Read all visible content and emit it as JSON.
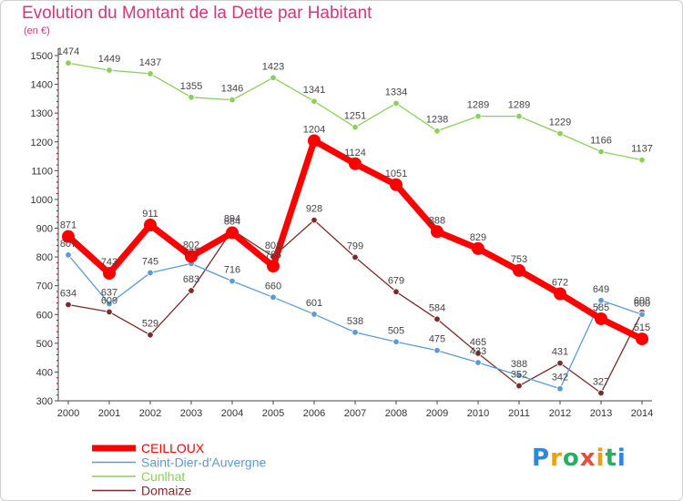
{
  "title": "Evolution du Montant de la Dette par Habitant",
  "unit": "(en €)",
  "logo_text": "Proxiti",
  "chart_data": {
    "type": "line",
    "title": "Evolution du Montant de la Dette par Habitant",
    "ylabel": "(en €)",
    "x": [
      "2000",
      "2001",
      "2002",
      "2003",
      "2004",
      "2005",
      "2006",
      "2007",
      "2008",
      "2009",
      "2010",
      "2011",
      "2012",
      "2013",
      "2014"
    ],
    "ylim": [
      300,
      1500
    ],
    "yticks": [
      300,
      400,
      500,
      600,
      700,
      800,
      900,
      1000,
      1100,
      1200,
      1300,
      1400,
      1500
    ],
    "grid": false,
    "legend_position": "bottom-left",
    "series": [
      {
        "name": "CEILLOUX",
        "color": "#ff0000",
        "values": [
          871,
          743,
          911,
          802,
          884,
          768,
          1204,
          1124,
          1051,
          888,
          829,
          753,
          672,
          585,
          515
        ],
        "labels": [
          "871",
          "743",
          "911",
          "802",
          "884",
          "768",
          "1204",
          "1124",
          "1051",
          "888",
          "829",
          "753",
          "672",
          "585",
          "515"
        ]
      },
      {
        "name": "Saint-Dier-d'Auvergne",
        "color": "#5b9bd5",
        "values": [
          807,
          637,
          745,
          777,
          716,
          660,
          601,
          538,
          505,
          475,
          433,
          388,
          342,
          649,
          600
        ],
        "labels": [
          "807",
          "637",
          "745",
          "777",
          "716",
          "660",
          "601",
          "538",
          "505",
          "475",
          "433",
          "388",
          "342",
          "649",
          "600"
        ]
      },
      {
        "name": "Cunlhat",
        "color": "#8bd05b",
        "values": [
          1474,
          1449,
          1437,
          1355,
          1346,
          1423,
          1341,
          1251,
          1334,
          1238,
          1289,
          1289,
          1229,
          1166,
          1137
        ],
        "labels": [
          "1474",
          "1449",
          "1437",
          "1355",
          "1346",
          "1423",
          "1341",
          "1251",
          "1334",
          "1238",
          "1289",
          "1289",
          "1229",
          "1166",
          "1137"
        ]
      },
      {
        "name": "Domaize",
        "color": "#7b2b2b",
        "values": [
          634,
          609,
          529,
          683,
          894,
          801,
          928,
          799,
          679,
          584,
          465,
          352,
          431,
          327,
          608
        ],
        "labels": [
          "634",
          "609",
          "529",
          "683",
          "894",
          "801",
          "928",
          "799",
          "679",
          "584",
          "465",
          "352",
          "431",
          "327",
          "608"
        ]
      }
    ]
  }
}
